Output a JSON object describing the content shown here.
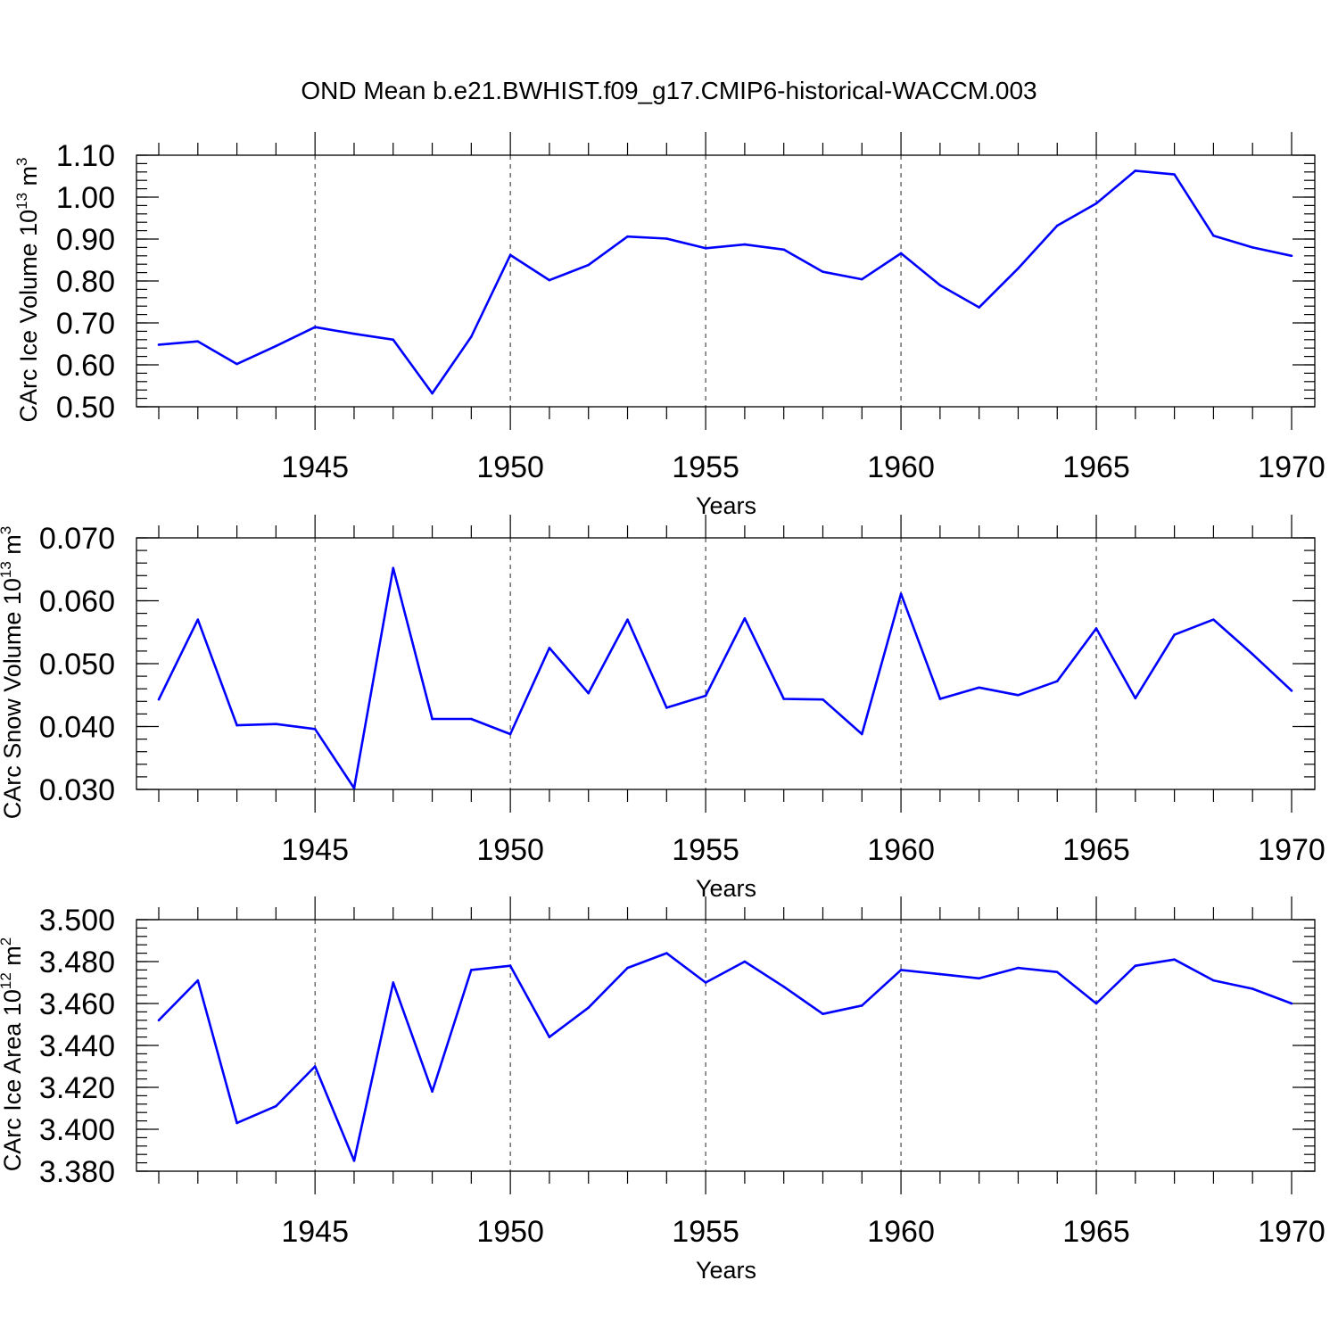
{
  "title": "OND Mean b.e21.BWHIST.f09_g17.CMIP6-historical-WACCM.003",
  "colors": {
    "line": "#0000ff",
    "axis": "#000000"
  },
  "chart_data": [
    {
      "type": "line",
      "name": "ice-volume",
      "ylabel_prefix": "CArc Ice Volume 10",
      "ylabel_exp": "13",
      "ylabel_unit": " m",
      "ylabel_unit_exp": "3",
      "xlabel": "Years",
      "xlim": [
        1941,
        1970
      ],
      "ylim": [
        0.5,
        1.1
      ],
      "yticks": [
        "1.10",
        "1.00",
        "0.90",
        "0.80",
        "0.70",
        "0.60",
        "0.50"
      ],
      "ytick_values": [
        1.1,
        1.0,
        0.9,
        0.8,
        0.7,
        0.6,
        0.5
      ],
      "yminor_step": 0.02,
      "xticks": [
        "1945",
        "1950",
        "1955",
        "1960",
        "1965",
        "1970"
      ],
      "xtick_values": [
        1945,
        1950,
        1955,
        1960,
        1965,
        1970
      ],
      "grid": "dashed vertical at major x ticks",
      "x": [
        1941,
        1942,
        1943,
        1944,
        1945,
        1946,
        1947,
        1948,
        1949,
        1950,
        1951,
        1952,
        1953,
        1954,
        1955,
        1956,
        1957,
        1958,
        1959,
        1960,
        1961,
        1962,
        1963,
        1964,
        1965,
        1966,
        1967,
        1968,
        1969,
        1970
      ],
      "y": [
        0.648,
        0.656,
        0.602,
        0.645,
        0.69,
        0.674,
        0.66,
        0.532,
        0.667,
        0.862,
        0.802,
        0.838,
        0.906,
        0.901,
        0.878,
        0.887,
        0.875,
        0.822,
        0.804,
        0.866,
        0.79,
        0.737,
        0.83,
        0.932,
        0.985,
        1.063,
        1.054,
        0.908,
        0.88,
        0.86
      ]
    },
    {
      "type": "line",
      "name": "snow-volume",
      "ylabel_prefix": "CArc Snow Volume 10",
      "ylabel_exp": "13",
      "ylabel_unit": " m",
      "ylabel_unit_exp": "3",
      "xlabel": "Years",
      "xlim": [
        1941,
        1970
      ],
      "ylim": [
        0.03,
        0.07
      ],
      "yticks": [
        "0.070",
        "0.060",
        "0.050",
        "0.040",
        "0.030"
      ],
      "ytick_values": [
        0.07,
        0.06,
        0.05,
        0.04,
        0.03
      ],
      "yminor_step": 0.002,
      "xticks": [
        "1945",
        "1950",
        "1955",
        "1960",
        "1965",
        "1970"
      ],
      "xtick_values": [
        1945,
        1950,
        1955,
        1960,
        1965,
        1970
      ],
      "grid": "dashed vertical at major x ticks",
      "x": [
        1941,
        1942,
        1943,
        1944,
        1945,
        1946,
        1947,
        1948,
        1949,
        1950,
        1951,
        1952,
        1953,
        1954,
        1955,
        1956,
        1957,
        1958,
        1959,
        1960,
        1961,
        1962,
        1963,
        1964,
        1965,
        1966,
        1967,
        1968,
        1969,
        1970
      ],
      "y": [
        0.0443,
        0.057,
        0.0402,
        0.0404,
        0.0396,
        0.0302,
        0.0652,
        0.0412,
        0.0412,
        0.0388,
        0.0525,
        0.0453,
        0.057,
        0.043,
        0.0449,
        0.0572,
        0.0444,
        0.0443,
        0.0388,
        0.0611,
        0.0444,
        0.0462,
        0.045,
        0.0472,
        0.0556,
        0.0445,
        0.0546,
        0.057,
        0.0515,
        0.0457
      ]
    },
    {
      "type": "line",
      "name": "ice-area",
      "ylabel_prefix": "CArc Ice Area 10",
      "ylabel_exp": "12",
      "ylabel_unit": " m",
      "ylabel_unit_exp": "2",
      "xlabel": "Years",
      "xlim": [
        1941,
        1970
      ],
      "ylim": [
        3.38,
        3.5
      ],
      "yticks": [
        "3.500",
        "3.480",
        "3.460",
        "3.440",
        "3.420",
        "3.400",
        "3.380"
      ],
      "ytick_values": [
        3.5,
        3.48,
        3.46,
        3.44,
        3.42,
        3.4,
        3.38
      ],
      "yminor_step": 0.004,
      "xticks": [
        "1945",
        "1950",
        "1955",
        "1960",
        "1965",
        "1970"
      ],
      "xtick_values": [
        1945,
        1950,
        1955,
        1960,
        1965,
        1970
      ],
      "grid": "dashed vertical at major x ticks",
      "x": [
        1941,
        1942,
        1943,
        1944,
        1945,
        1946,
        1947,
        1948,
        1949,
        1950,
        1951,
        1952,
        1953,
        1954,
        1955,
        1956,
        1957,
        1958,
        1959,
        1960,
        1961,
        1962,
        1963,
        1964,
        1965,
        1966,
        1967,
        1968,
        1969,
        1970
      ],
      "y": [
        3.452,
        3.471,
        3.403,
        3.411,
        3.43,
        3.385,
        3.47,
        3.418,
        3.476,
        3.478,
        3.444,
        3.458,
        3.477,
        3.484,
        3.47,
        3.48,
        3.468,
        3.455,
        3.459,
        3.476,
        3.474,
        3.472,
        3.477,
        3.475,
        3.46,
        3.478,
        3.481,
        3.471,
        3.467,
        3.46
      ]
    }
  ]
}
